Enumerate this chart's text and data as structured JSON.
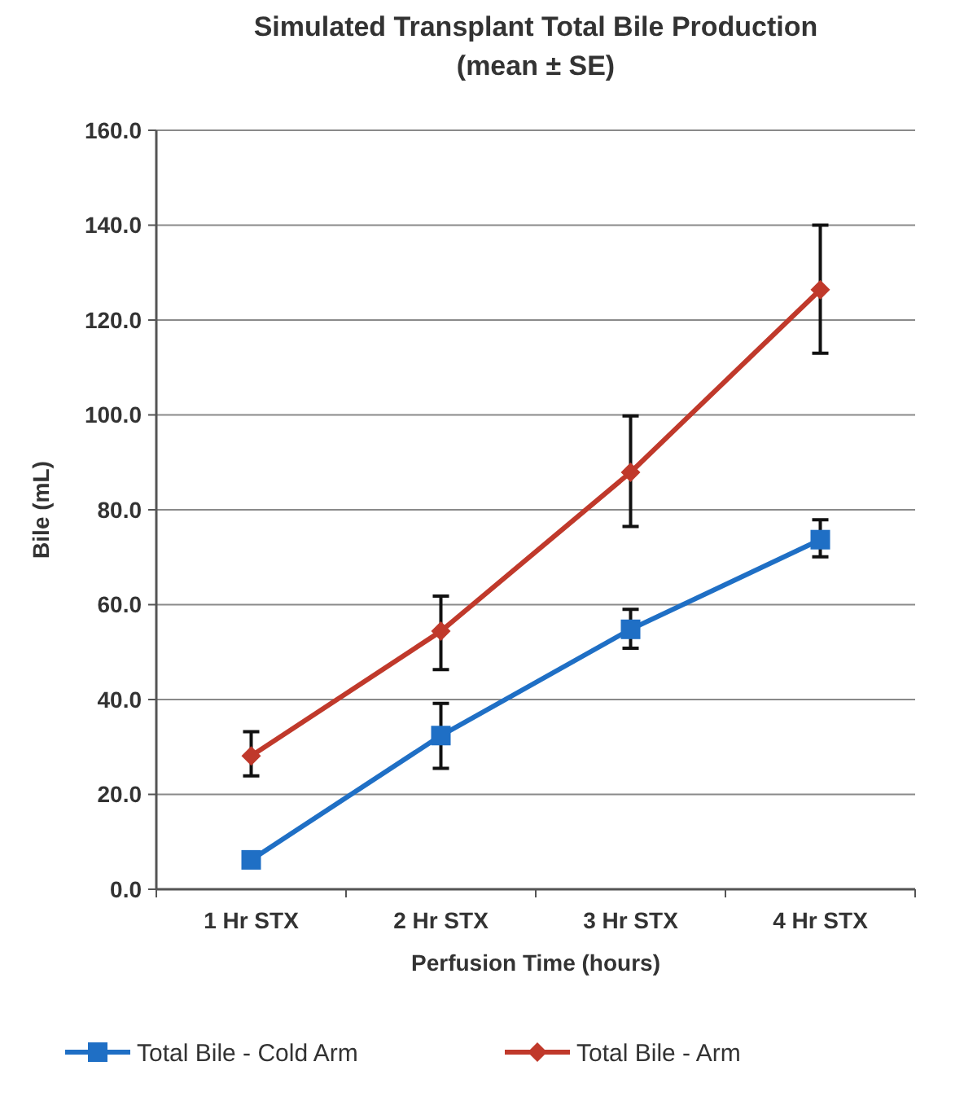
{
  "chart_data": {
    "type": "line",
    "title": "Simulated Transplant Total Bile Production",
    "subtitle": "(mean ± SE)",
    "xlabel": "Perfusion Time (hours)",
    "ylabel": "Bile (mL)",
    "categories": [
      "1 Hr STX",
      "2 Hr STX",
      "3 Hr STX",
      "4 Hr STX"
    ],
    "series": [
      {
        "name": "Total Bile - Cold Arm",
        "color": "#1f6fc5",
        "marker": "square",
        "values": [
          6.2,
          32.4,
          54.8,
          73.7
        ],
        "errors": [
          null,
          [
            25.5,
            39.2
          ],
          [
            50.8,
            59.0
          ],
          [
            70.1,
            77.9
          ]
        ]
      },
      {
        "name": "Total Bile - Arm",
        "color": "#c0392b",
        "marker": "diamond",
        "values": [
          28.1,
          54.4,
          87.9,
          126.4
        ],
        "errors": [
          [
            23.9,
            33.2
          ],
          [
            46.3,
            61.8
          ],
          [
            76.5,
            99.8
          ],
          [
            113.0,
            140.0
          ]
        ]
      }
    ],
    "ylim": [
      0,
      160
    ],
    "yticks": [
      {
        "value": 0,
        "label": "0.0"
      },
      {
        "value": 20,
        "label": "20.0"
      },
      {
        "value": 40,
        "label": "40.0"
      },
      {
        "value": 60,
        "label": "60.0"
      },
      {
        "value": 80,
        "label": "80.0"
      },
      {
        "value": 100,
        "label": "100.0"
      },
      {
        "value": 120,
        "label": "120.0"
      },
      {
        "value": 140,
        "label": "140.0"
      },
      {
        "value": 160,
        "label": "160.0"
      }
    ],
    "grid": "y",
    "legend": "bottom"
  }
}
